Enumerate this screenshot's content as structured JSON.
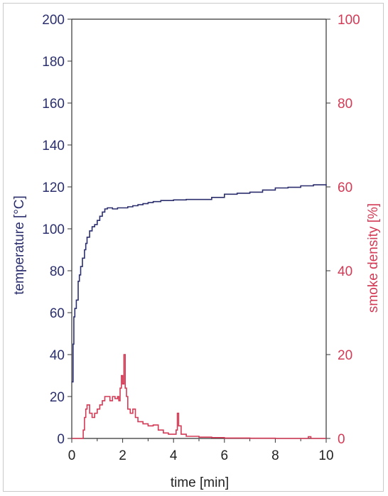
{
  "chart_data": {
    "type": "line",
    "title": "",
    "xlabel": "time [min]",
    "ylabel_left": "temperature [°C]",
    "ylabel_right": "smoke density [%]",
    "xlim": [
      0,
      10
    ],
    "ylim_left": [
      0,
      200
    ],
    "ylim_right": [
      0,
      100
    ],
    "x_ticks": [
      "0",
      "2",
      "4",
      "6",
      "8",
      "10"
    ],
    "y_left_ticks": [
      "0",
      "20",
      "40",
      "60",
      "80",
      "100",
      "120",
      "140",
      "160",
      "180",
      "200"
    ],
    "y_right_ticks": [
      "0",
      "20",
      "40",
      "60",
      "80",
      "100"
    ],
    "grid": false,
    "legend": "none",
    "colors": {
      "temperature": "#2b2f6e",
      "smoke": "#d33a55",
      "axis": "#333333"
    },
    "series": [
      {
        "axis": "left",
        "x": [
          0,
          0.05,
          0.08,
          0.12,
          0.18,
          0.25,
          0.3,
          0.35,
          0.42,
          0.5,
          0.55,
          0.6,
          0.7,
          0.8,
          0.9,
          1.0,
          1.1,
          1.2,
          1.3,
          1.4,
          1.5,
          1.6,
          1.7,
          1.8,
          2.0,
          2.2,
          2.4,
          2.6,
          2.8,
          3.0,
          3.2,
          3.5,
          4.0,
          4.5,
          5.0,
          5.5,
          6.0,
          6.5,
          7.0,
          7.5,
          8.0,
          8.5,
          9.0,
          9.5,
          10.0
        ],
        "values": [
          27,
          45,
          58,
          62,
          66,
          75,
          78,
          82,
          86,
          90,
          93,
          96,
          99,
          101,
          102,
          104,
          106,
          108,
          109.5,
          110,
          110,
          109.5,
          109.5,
          110,
          110,
          110.5,
          111,
          111.5,
          112,
          112.5,
          113,
          113.5,
          113.8,
          114,
          114,
          115,
          116.5,
          117,
          117.5,
          118.5,
          119.5,
          119.8,
          120.5,
          121,
          120.5
        ]
      },
      {
        "axis": "right",
        "x": [
          0,
          0.4,
          0.45,
          0.5,
          0.55,
          0.6,
          0.7,
          0.8,
          0.9,
          1.0,
          1.1,
          1.2,
          1.3,
          1.4,
          1.5,
          1.6,
          1.7,
          1.8,
          1.85,
          1.9,
          1.95,
          2.0,
          2.05,
          2.1,
          2.15,
          2.2,
          2.3,
          2.4,
          2.5,
          2.6,
          2.8,
          3.0,
          3.2,
          3.4,
          3.6,
          3.8,
          4.0,
          4.1,
          4.15,
          4.2,
          4.3,
          4.5,
          5.0,
          5.5,
          6.0,
          7.0,
          8.0,
          9.0,
          9.3,
          9.4,
          10.0
        ],
        "values": [
          0,
          0,
          2,
          5,
          7,
          8,
          6,
          5,
          6,
          7,
          8,
          9,
          10,
          10,
          9,
          10,
          9.5,
          10,
          9,
          12,
          15,
          13,
          20,
          12,
          10,
          7,
          6,
          7,
          5,
          4,
          3.5,
          3,
          3.2,
          2,
          1.3,
          1,
          1,
          2,
          6,
          3,
          1,
          0.5,
          0.3,
          0.2,
          0.1,
          0.05,
          0,
          0,
          0.4,
          0,
          0
        ]
      }
    ]
  }
}
